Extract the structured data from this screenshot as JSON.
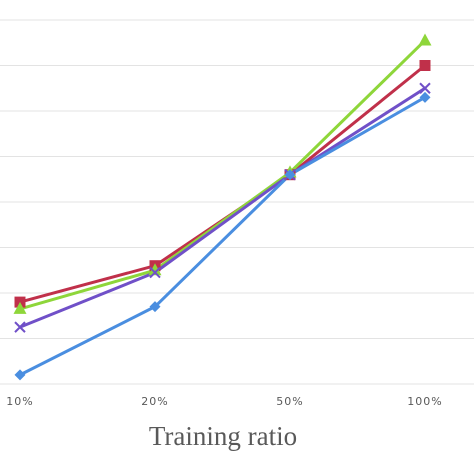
{
  "chart_data": {
    "type": "line",
    "xlabel": "Training ratio",
    "categories": [
      "10%",
      "20%",
      "50%",
      "100%"
    ],
    "grid": true,
    "ylim": [
      0,
      8
    ],
    "series": [
      {
        "marker": "square",
        "color": "#c0304a",
        "values": [
          1.8,
          2.6,
          4.6,
          7.0
        ]
      },
      {
        "marker": "triangle",
        "color": "#8ed63a",
        "values": [
          1.65,
          2.5,
          4.65,
          7.55
        ]
      },
      {
        "marker": "cross",
        "color": "#7050c8",
        "values": [
          1.25,
          2.45,
          4.6,
          6.5
        ]
      },
      {
        "marker": "diamond",
        "color": "#4a8ee0",
        "values": [
          0.2,
          1.7,
          4.6,
          6.3
        ]
      }
    ]
  }
}
